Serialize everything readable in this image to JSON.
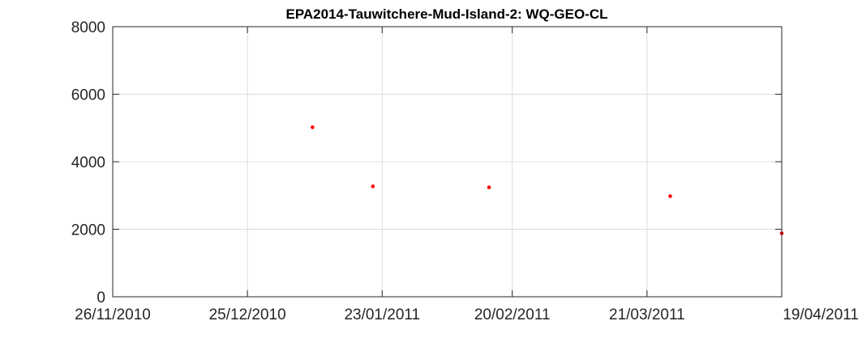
{
  "chart_data": {
    "type": "scatter",
    "title": "EPA2014-Tauwitchere-Mud-Island-2: WQ-GEO-CL",
    "xlabel": "",
    "ylabel": "",
    "x_ticks": [
      "26/11/2010",
      "25/12/2010",
      "23/01/2011",
      "20/02/2011",
      "21/03/2011",
      "19/04/2011"
    ],
    "y_ticks": [
      "0",
      "2000",
      "4000",
      "6000",
      "8000"
    ],
    "xlim": [
      "2010-11-26",
      "2011-04-19"
    ],
    "ylim": [
      0,
      8000
    ],
    "grid": true,
    "marker_color": "#ff0000",
    "series": [
      {
        "points": [
          {
            "x": "2011-01-08",
            "y": 5020
          },
          {
            "x": "2011-01-21",
            "y": 3270
          },
          {
            "x": "2011-02-15",
            "y": 3240
          },
          {
            "x": "2011-03-26",
            "y": 2980
          },
          {
            "x": "2011-04-19",
            "y": 1880
          }
        ]
      }
    ]
  }
}
